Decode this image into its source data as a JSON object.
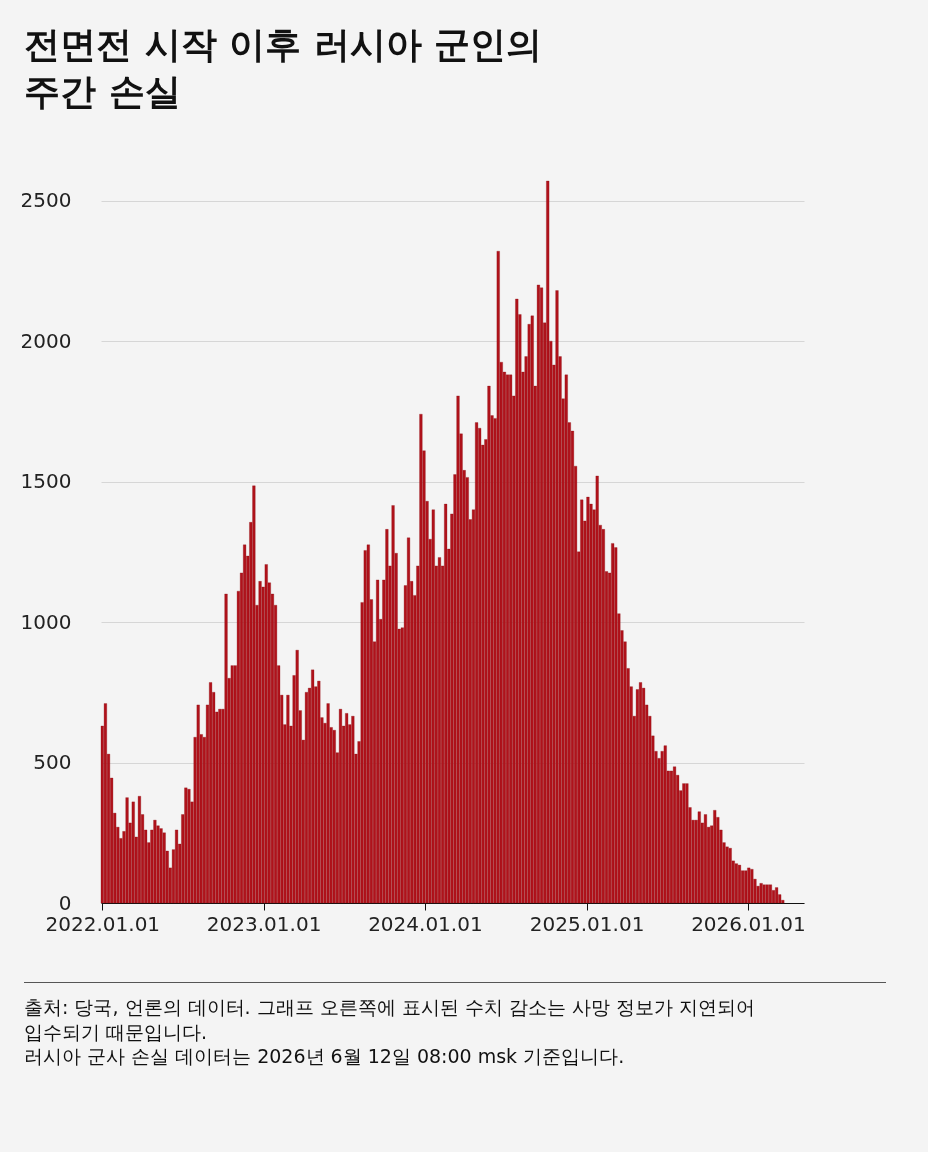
{
  "chart_data": {
    "type": "bar",
    "title": "전면전 시작 이후 러시아 군인의 주간 손실",
    "annotations": [
      "출처: 당국, 언론의 데이터. 그래프 오른쪽에 표시된 수치 감소는 사망 정보가 지연되어 입수되기 때문입니다.",
      "러시아 군사 손실 데이터는 2026년 6월 12일 08:00 msk 기준입니다."
    ],
    "x": [
      "2022-01-01",
      "2022-01-08",
      "2022-01-15",
      "2022-01-22",
      "2022-01-29",
      "2022-02-05",
      "2022-02-12",
      "2022-02-19",
      "2022-02-26",
      "2022-03-05",
      "2022-03-12",
      "2022-03-19",
      "2022-03-26",
      "2022-04-02",
      "2022-04-09",
      "2022-04-16",
      "2022-04-23",
      "2022-04-30",
      "2022-05-07",
      "2022-05-14",
      "2022-05-21",
      "2022-05-28",
      "2022-06-04",
      "2022-06-11",
      "2022-06-18",
      "2022-06-25",
      "2022-07-02",
      "2022-07-09",
      "2022-07-16",
      "2022-07-23",
      "2022-07-30",
      "2022-08-06",
      "2022-08-13",
      "2022-08-20",
      "2022-08-27",
      "2022-09-03",
      "2022-09-10",
      "2022-09-17",
      "2022-09-24",
      "2022-10-01",
      "2022-10-08",
      "2022-10-15",
      "2022-10-22",
      "2022-10-29",
      "2022-11-05",
      "2022-11-12",
      "2022-11-19",
      "2022-11-26",
      "2022-12-03",
      "2022-12-10",
      "2022-12-17",
      "2022-12-24",
      "2022-12-31",
      "2023-01-07",
      "2023-01-14",
      "2023-01-21",
      "2023-01-28",
      "2023-02-04",
      "2023-02-11",
      "2023-02-18",
      "2023-02-25",
      "2023-03-04",
      "2023-03-11",
      "2023-03-18",
      "2023-03-25",
      "2023-04-01",
      "2023-04-08",
      "2023-04-15",
      "2023-04-22",
      "2023-04-29",
      "2023-05-06",
      "2023-05-13",
      "2023-05-20",
      "2023-05-27",
      "2023-06-03",
      "2023-06-10",
      "2023-06-17",
      "2023-06-24",
      "2023-07-01",
      "2023-07-08",
      "2023-07-15",
      "2023-07-22",
      "2023-07-29",
      "2023-08-05",
      "2023-08-12",
      "2023-08-19",
      "2023-08-26",
      "2023-09-02",
      "2023-09-09",
      "2023-09-16",
      "2023-09-23",
      "2023-09-30",
      "2023-10-07",
      "2023-10-14",
      "2023-10-21",
      "2023-10-28",
      "2023-11-04",
      "2023-11-11",
      "2023-11-18",
      "2023-11-25",
      "2023-12-02",
      "2023-12-09",
      "2023-12-16",
      "2023-12-23",
      "2023-12-30",
      "2024-01-06",
      "2024-01-13",
      "2024-01-20",
      "2024-01-27",
      "2024-02-03",
      "2024-02-10",
      "2024-02-17",
      "2024-02-24",
      "2024-03-02",
      "2024-03-09",
      "2024-03-16",
      "2024-03-23",
      "2024-03-30",
      "2024-04-06",
      "2024-04-13",
      "2024-04-20",
      "2024-04-27",
      "2024-05-04",
      "2024-05-11",
      "2024-05-18",
      "2024-05-25",
      "2024-06-01",
      "2024-06-08",
      "2024-06-15",
      "2024-06-22",
      "2024-06-29",
      "2024-07-06",
      "2024-07-13",
      "2024-07-20",
      "2024-07-27",
      "2024-08-03",
      "2024-08-10",
      "2024-08-17",
      "2024-08-24",
      "2024-08-31",
      "2024-09-07",
      "2024-09-14",
      "2024-09-21",
      "2024-09-28",
      "2024-10-05",
      "2024-10-12",
      "2024-10-19",
      "2024-10-26",
      "2024-11-02",
      "2024-11-09",
      "2024-11-16",
      "2024-11-23",
      "2024-11-30",
      "2024-12-07",
      "2024-12-14",
      "2024-12-21",
      "2024-12-28",
      "2025-01-04",
      "2025-01-11",
      "2025-01-18",
      "2025-01-25",
      "2025-02-01",
      "2025-02-08",
      "2025-02-15",
      "2025-02-22",
      "2025-03-01",
      "2025-03-08",
      "2025-03-15",
      "2025-03-22",
      "2025-03-29",
      "2025-04-05",
      "2025-04-12",
      "2025-04-19",
      "2025-04-26",
      "2025-05-03",
      "2025-05-10",
      "2025-05-17",
      "2025-05-24",
      "2025-05-31",
      "2025-06-07",
      "2025-06-14",
      "2025-06-21",
      "2025-06-28",
      "2025-07-05",
      "2025-07-12",
      "2025-07-19",
      "2025-07-26",
      "2025-08-02",
      "2025-08-09",
      "2025-08-16",
      "2025-08-23",
      "2025-08-30",
      "2025-09-06",
      "2025-09-13",
      "2025-09-20",
      "2025-09-27",
      "2025-10-04",
      "2025-10-11",
      "2025-10-18",
      "2025-10-25",
      "2025-11-01",
      "2025-11-08",
      "2025-11-15",
      "2025-11-22",
      "2025-11-29",
      "2025-12-06",
      "2025-12-13",
      "2025-12-20",
      "2025-12-27",
      "2026-01-03",
      "2026-01-10",
      "2026-01-17",
      "2026-01-24",
      "2026-01-31",
      "2026-02-07",
      "2026-02-14",
      "2026-02-21",
      "2026-02-28",
      "2026-03-07",
      "2026-03-14",
      "2026-03-21"
    ],
    "values": [
      630,
      710,
      530,
      445,
      320,
      270,
      230,
      255,
      375,
      285,
      360,
      235,
      380,
      315,
      260,
      215,
      260,
      295,
      275,
      265,
      250,
      185,
      125,
      190,
      260,
      210,
      315,
      410,
      405,
      360,
      590,
      705,
      600,
      590,
      705,
      785,
      750,
      680,
      690,
      690,
      1100,
      800,
      845,
      845,
      1110,
      1175,
      1275,
      1235,
      1355,
      1485,
      1060,
      1145,
      1125,
      1205,
      1140,
      1100,
      1060,
      845,
      740,
      635,
      740,
      630,
      810,
      900,
      685,
      580,
      750,
      765,
      830,
      770,
      790,
      660,
      640,
      710,
      625,
      615,
      535,
      690,
      630,
      675,
      635,
      665,
      530,
      575,
      1070,
      1255,
      1275,
      1080,
      930,
      1150,
      1010,
      1150,
      1330,
      1200,
      1415,
      1245,
      975,
      980,
      1130,
      1300,
      1145,
      1095,
      1200,
      1740,
      1610,
      1430,
      1295,
      1400,
      1200,
      1230,
      1200,
      1420,
      1260,
      1385,
      1525,
      1805,
      1670,
      1540,
      1515,
      1365,
      1400,
      1710,
      1690,
      1630,
      1650,
      1840,
      1735,
      1725,
      2320,
      1925,
      1890,
      1880,
      1880,
      1805,
      2150,
      2095,
      1890,
      1945,
      2060,
      2090,
      1840,
      2200,
      2190,
      2065,
      2570,
      2000,
      1915,
      2180,
      1945,
      1795,
      1880,
      1710,
      1680,
      1555,
      1250,
      1435,
      1360,
      1445,
      1420,
      1400,
      1520,
      1345,
      1330,
      1180,
      1175,
      1280,
      1265,
      1030,
      970,
      930,
      835,
      770,
      665,
      760,
      785,
      765,
      705,
      665,
      595,
      540,
      515,
      540,
      560,
      470,
      470,
      485,
      455,
      400,
      425,
      425,
      340,
      295,
      295,
      325,
      285,
      315,
      270,
      275,
      330,
      305,
      260,
      215,
      200,
      195,
      150,
      140,
      135,
      115,
      115,
      125,
      120,
      85,
      60,
      70,
      65,
      65,
      65,
      45,
      55,
      30,
      10
    ],
    "color": "#b0121b",
    "xlim": [
      "2021-12-29",
      "2026-05-08"
    ],
    "xticks": [
      {
        "value": "2022-01-01",
        "label": "2022.01.01"
      },
      {
        "value": "2023-01-01",
        "label": "2023.01.01"
      },
      {
        "value": "2024-01-01",
        "label": "2024.01.01"
      },
      {
        "value": "2025-01-01",
        "label": "2025.01.01"
      },
      {
        "value": "2026-01-01",
        "label": "2026.01.01"
      }
    ],
    "ylim": [
      0,
      2570
    ],
    "yticks": [
      0,
      500,
      1000,
      1500,
      2000,
      2500
    ],
    "grid": "y"
  }
}
